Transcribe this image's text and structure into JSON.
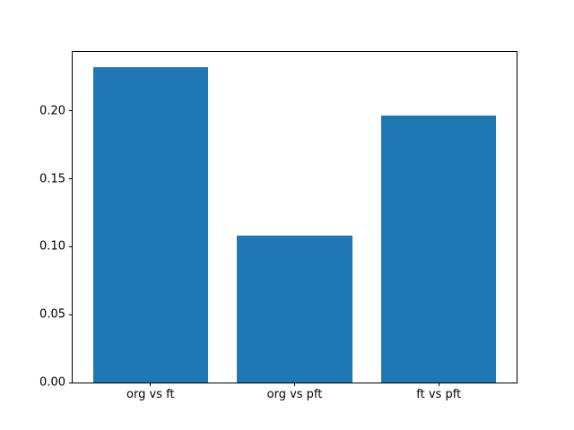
{
  "chart_data": {
    "type": "bar",
    "title": "",
    "xlabel": "",
    "ylabel": "",
    "categories": [
      "org vs ft",
      "org vs pft",
      "ft vs pft"
    ],
    "values": [
      0.2323,
      0.1079,
      0.1964
    ],
    "bar_color": "#1f77b4",
    "bar_width_units": 0.8,
    "xlim": [
      -0.54,
      2.54
    ],
    "ylim": [
      0,
      0.2435
    ],
    "yticks": [
      0.0,
      0.05,
      0.1,
      0.15,
      0.2
    ],
    "ytick_labels": [
      "0.00",
      "0.05",
      "0.10",
      "0.15",
      "0.20"
    ],
    "grid": "off",
    "legend": "none",
    "background_color": "#ffffff",
    "spine_color": "#000000"
  }
}
